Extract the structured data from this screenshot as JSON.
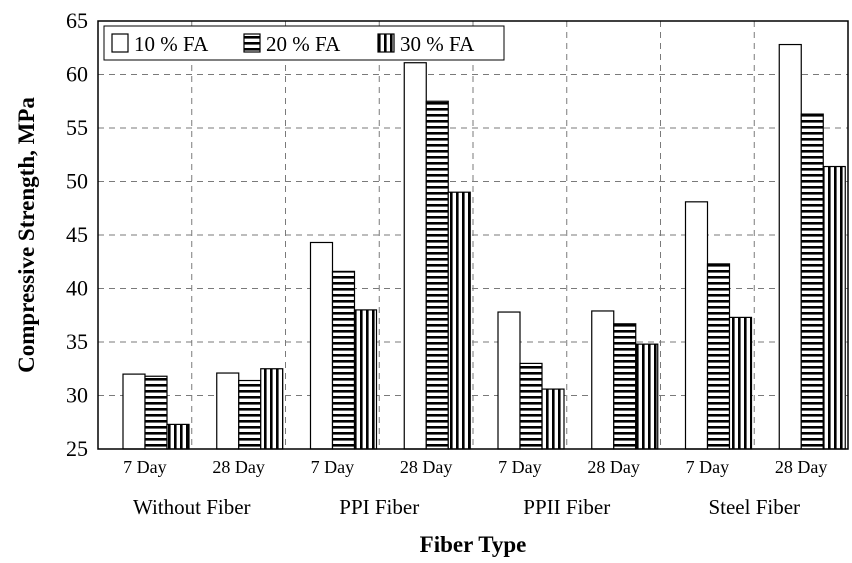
{
  "chart_data": {
    "type": "bar",
    "title": "",
    "xlabel": "Fiber Type",
    "ylabel": "Compressive Strength, MPa",
    "ylim": [
      25,
      65
    ],
    "yticks": [
      25,
      30,
      35,
      40,
      45,
      50,
      55,
      60,
      65
    ],
    "grid": true,
    "legend_position": "top-left",
    "groups": [
      "Without Fiber",
      "PPI Fiber",
      "PPII Fiber",
      "Steel Fiber"
    ],
    "categories": [
      "7 Day",
      "28 Day",
      "7 Day",
      "28 Day",
      "7 Day",
      "28 Day",
      "7 Day",
      "28 Day"
    ],
    "series": [
      {
        "name": "10 % FA",
        "pattern": "open",
        "values": [
          32.0,
          32.1,
          44.3,
          61.1,
          37.8,
          37.9,
          48.1,
          62.8
        ]
      },
      {
        "name": "20 % FA",
        "pattern": "horizontal",
        "values": [
          31.8,
          31.4,
          41.6,
          57.5,
          33.0,
          36.7,
          42.3,
          56.3
        ]
      },
      {
        "name": "30 % FA",
        "pattern": "vertical",
        "values": [
          27.3,
          32.5,
          38.0,
          49.0,
          30.6,
          34.8,
          37.3,
          51.4
        ]
      }
    ]
  }
}
